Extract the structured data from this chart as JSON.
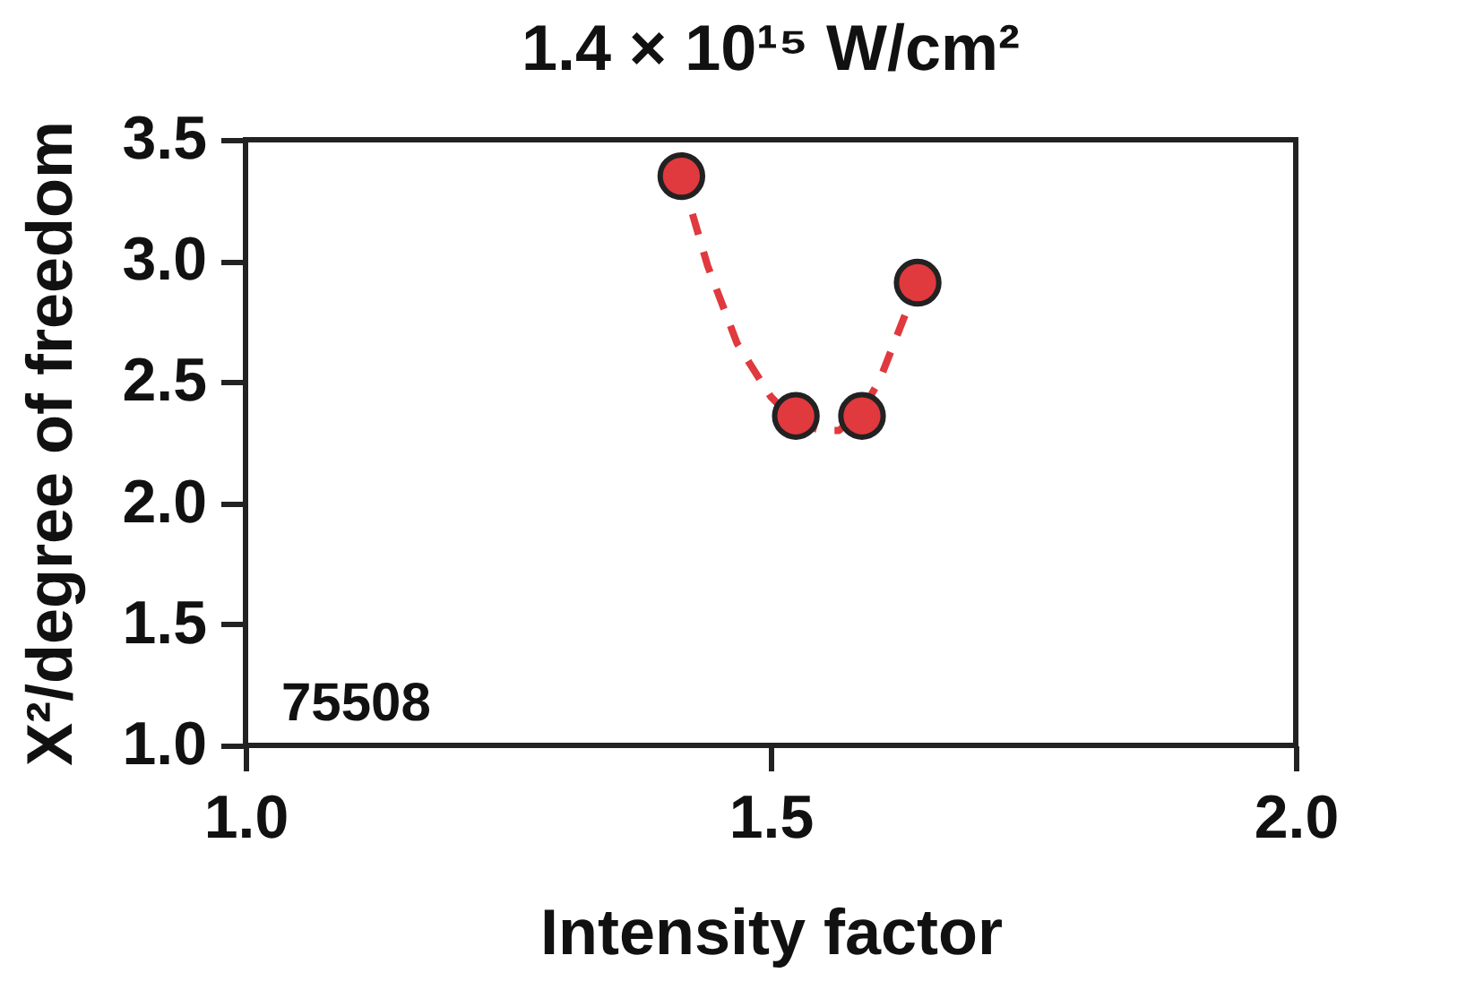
{
  "chart_data": {
    "type": "scatter",
    "title": "1.4 × 10¹⁵ W/cm²",
    "xlabel": "Intensity factor",
    "ylabel": "X²/degree of freedom",
    "annotations": [
      "75508"
    ],
    "xlim": [
      1.0,
      2.0
    ],
    "xticks": [
      {
        "value": 1.0,
        "label": "1.0"
      },
      {
        "value": 1.5,
        "label": "1.5"
      },
      {
        "value": 2.0,
        "label": "2.0"
      }
    ],
    "ylim": [
      1.0,
      3.5
    ],
    "yticks": [
      {
        "value": 1.0,
        "label": "1.0"
      },
      {
        "value": 1.5,
        "label": "1.5"
      },
      {
        "value": 2.0,
        "label": "2.0"
      },
      {
        "value": 2.5,
        "label": "2.5"
      },
      {
        "value": 3.0,
        "label": "3.0"
      },
      {
        "value": 3.5,
        "label": "3.5"
      }
    ],
    "grid": false,
    "series": [
      {
        "type": "line",
        "color": "#e0393e",
        "line_style": "dashed",
        "marker": "none",
        "x": [
          1.415,
          1.44,
          1.468,
          1.5,
          1.525,
          1.548,
          1.565,
          1.587,
          1.604,
          1.64
        ],
        "values": [
          3.35,
          2.98,
          2.66,
          2.44,
          2.33,
          2.3,
          2.3,
          2.38,
          2.51,
          2.91
        ]
      },
      {
        "color": "#e0393e",
        "marker": "circle",
        "x": [
          1.415,
          1.524,
          1.587,
          1.64
        ],
        "values": [
          3.35,
          2.36,
          2.36,
          2.91
        ]
      }
    ]
  }
}
